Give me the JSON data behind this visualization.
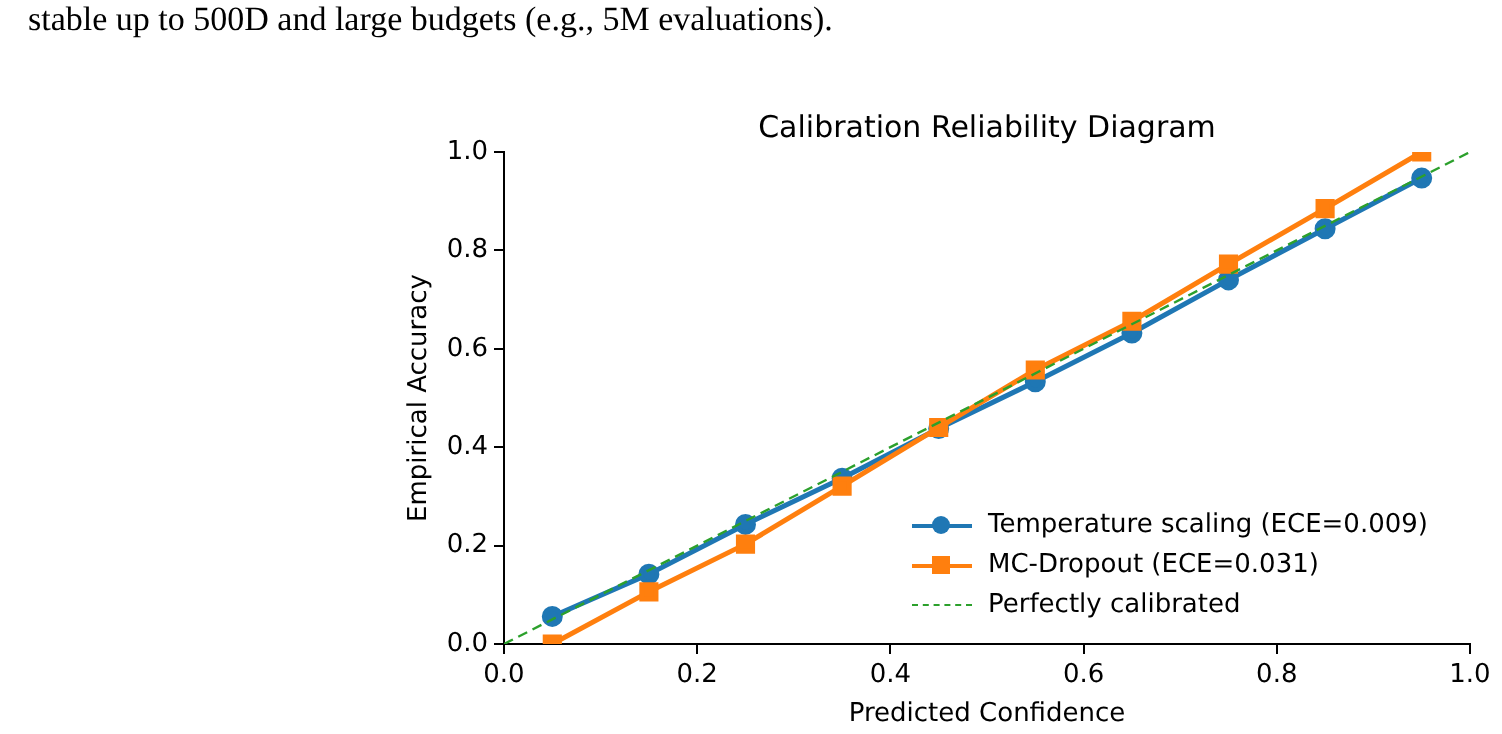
{
  "chart_data": {
    "type": "line",
    "title": "Calibration Reliability Diagram",
    "xlabel": "Predicted Confidence",
    "ylabel": "Empirical Accuracy",
    "annotations": [
      "stable up to 500D and large budgets (e.g., 5M evaluations)."
    ],
    "x": [
      0.05,
      0.15,
      0.25,
      0.35,
      0.45,
      0.55,
      0.65,
      0.75,
      0.85,
      0.95
    ],
    "series": [
      {
        "name": "Temperature scaling (ECE=0.009)",
        "color": "#1f77b4",
        "marker": "circle",
        "values": [
          0.056,
          0.142,
          0.243,
          0.337,
          0.438,
          0.533,
          0.632,
          0.74,
          0.844,
          0.947
        ]
      },
      {
        "name": "MC-Dropout (ECE=0.031)",
        "color": "#ff7f0e",
        "marker": "square",
        "values": [
          0.0,
          0.106,
          0.203,
          0.321,
          0.44,
          0.557,
          0.656,
          0.772,
          0.885,
          1.0
        ]
      },
      {
        "name": "Perfectly calibrated",
        "color": "#2ca02c",
        "marker": "none",
        "line_style": "dashed",
        "x": [
          0,
          1
        ],
        "values": [
          0,
          1
        ]
      }
    ],
    "xlim": [
      0,
      1
    ],
    "ylim": [
      0,
      1
    ],
    "xticks": [
      {
        "value": 0,
        "label": "0.0"
      },
      0.2,
      0.4,
      0.6,
      0.8,
      {
        "value": 1,
        "label": "1.0"
      }
    ],
    "yticks": [
      {
        "value": 0,
        "label": "0.0"
      },
      0.2,
      0.4,
      0.6,
      0.8,
      {
        "value": 1,
        "label": "1.0"
      }
    ],
    "grid": false,
    "legend": "bottom right"
  }
}
